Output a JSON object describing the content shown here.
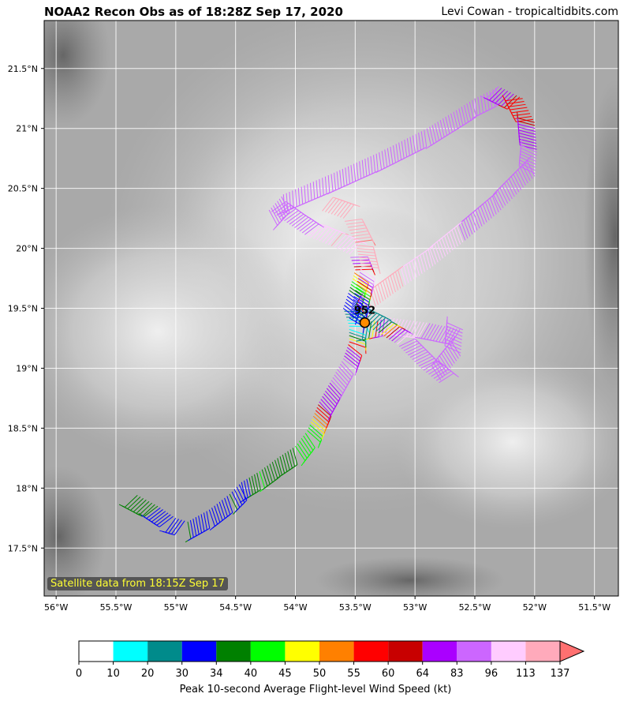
{
  "header": {
    "title": "NOAA2 Recon Obs as of 18:28Z Sep 17, 2020",
    "credit": "Levi Cowan - tropicaltidbits.com"
  },
  "map": {
    "lon_ticks": [
      "56°W",
      "55.5°W",
      "55°W",
      "54.5°W",
      "54°W",
      "53.5°W",
      "53°W",
      "52.5°W",
      "52°W",
      "51.5°W"
    ],
    "lat_ticks": [
      "21.5°N",
      "21°N",
      "20.5°N",
      "20°N",
      "19.5°N",
      "19°N",
      "18.5°N",
      "18°N",
      "17.5°N"
    ],
    "lon_range": [
      -56.1,
      -51.3
    ],
    "lat_range": [
      17.1,
      21.9
    ],
    "pressure_label": "952",
    "center": {
      "lon": -53.42,
      "lat": 19.38
    },
    "satellite_note": "Satellite data from 18:15Z Sep 17",
    "flight_track": [
      {
        "lon": -55.32,
        "lat": 17.94,
        "kt": 34
      },
      {
        "lon": -55.15,
        "lat": 17.85,
        "kt": 34
      },
      {
        "lon": -55.0,
        "lat": 17.75,
        "kt": 30
      },
      {
        "lon": -54.9,
        "lat": 17.72,
        "kt": 34
      },
      {
        "lon": -54.72,
        "lat": 17.82,
        "kt": 30
      },
      {
        "lon": -54.55,
        "lat": 17.95,
        "kt": 34
      },
      {
        "lon": -54.45,
        "lat": 18.05,
        "kt": 30
      },
      {
        "lon": -54.3,
        "lat": 18.14,
        "kt": 40
      },
      {
        "lon": -54.15,
        "lat": 18.25,
        "kt": 34
      },
      {
        "lon": -54.0,
        "lat": 18.35,
        "kt": 40
      },
      {
        "lon": -53.9,
        "lat": 18.48,
        "kt": 40
      },
      {
        "lon": -53.85,
        "lat": 18.6,
        "kt": 50
      },
      {
        "lon": -53.8,
        "lat": 18.72,
        "kt": 64
      },
      {
        "lon": -53.7,
        "lat": 18.9,
        "kt": 83
      },
      {
        "lon": -53.6,
        "lat": 19.08,
        "kt": 83
      },
      {
        "lon": -53.55,
        "lat": 19.22,
        "kt": 55
      },
      {
        "lon": -53.55,
        "lat": 19.35,
        "kt": 10
      },
      {
        "lon": -53.6,
        "lat": 19.5,
        "kt": 30
      },
      {
        "lon": -53.55,
        "lat": 19.65,
        "kt": 34
      },
      {
        "lon": -53.5,
        "lat": 19.82,
        "kt": 55
      },
      {
        "lon": -53.55,
        "lat": 19.95,
        "kt": 96
      },
      {
        "lon": -53.7,
        "lat": 20.02,
        "kt": 113
      },
      {
        "lon": -53.9,
        "lat": 20.1,
        "kt": 96
      },
      {
        "lon": -54.05,
        "lat": 20.2,
        "kt": 83
      },
      {
        "lon": -54.22,
        "lat": 20.32,
        "kt": 83
      },
      {
        "lon": -54.1,
        "lat": 20.45,
        "kt": 83
      },
      {
        "lon": -53.7,
        "lat": 20.62,
        "kt": 83
      },
      {
        "lon": -53.3,
        "lat": 20.8,
        "kt": 83
      },
      {
        "lon": -52.9,
        "lat": 21.0,
        "kt": 83
      },
      {
        "lon": -52.5,
        "lat": 21.25,
        "kt": 83
      },
      {
        "lon": -52.3,
        "lat": 21.35,
        "kt": 83
      },
      {
        "lon": -52.1,
        "lat": 21.25,
        "kt": 55
      },
      {
        "lon": -52.0,
        "lat": 21.05,
        "kt": 60
      },
      {
        "lon": -51.98,
        "lat": 20.8,
        "kt": 83
      },
      {
        "lon": -52.0,
        "lat": 20.6,
        "kt": 83
      },
      {
        "lon": -52.3,
        "lat": 20.3,
        "kt": 83
      },
      {
        "lon": -52.6,
        "lat": 20.05,
        "kt": 96
      },
      {
        "lon": -52.85,
        "lat": 19.85,
        "kt": 96
      },
      {
        "lon": -53.1,
        "lat": 19.68,
        "kt": 113
      },
      {
        "lon": -53.35,
        "lat": 19.5,
        "kt": 113
      },
      {
        "lon": -53.42,
        "lat": 19.38,
        "kt": 20
      },
      {
        "lon": -53.2,
        "lat": 19.42,
        "kt": 96
      },
      {
        "lon": -52.9,
        "lat": 19.38,
        "kt": 96
      },
      {
        "lon": -52.6,
        "lat": 19.32,
        "kt": 83
      },
      {
        "lon": -52.62,
        "lat": 19.1,
        "kt": 83
      },
      {
        "lon": -52.8,
        "lat": 18.88,
        "kt": 83
      },
      {
        "lon": -52.95,
        "lat": 19.0,
        "kt": 83
      },
      {
        "lon": -53.15,
        "lat": 19.2,
        "kt": 96
      },
      {
        "lon": -53.35,
        "lat": 19.32,
        "kt": 20
      },
      {
        "lon": -53.55,
        "lat": 19.42,
        "kt": 30
      },
      {
        "lon": -53.5,
        "lat": 19.65,
        "kt": 34
      },
      {
        "lon": -53.45,
        "lat": 19.85,
        "kt": 113
      },
      {
        "lon": -53.5,
        "lat": 20.05,
        "kt": 137
      },
      {
        "lon": -53.6,
        "lat": 20.25,
        "kt": 113
      },
      {
        "lon": -53.8,
        "lat": 20.32,
        "kt": 113
      }
    ]
  },
  "colorbar": {
    "label": "Peak 10-second Average Flight-level Wind Speed (kt)",
    "bins": [
      {
        "tick": "0",
        "color": "#ffffff"
      },
      {
        "tick": "10",
        "color": "#00ffff"
      },
      {
        "tick": "20",
        "color": "#008b8b"
      },
      {
        "tick": "30",
        "color": "#0000ff"
      },
      {
        "tick": "34",
        "color": "#008000"
      },
      {
        "tick": "40",
        "color": "#00ff00"
      },
      {
        "tick": "45",
        "color": "#ffff00"
      },
      {
        "tick": "50",
        "color": "#ff8000"
      },
      {
        "tick": "55",
        "color": "#ff0000"
      },
      {
        "tick": "60",
        "color": "#c80000"
      },
      {
        "tick": "64",
        "color": "#aa00ff"
      },
      {
        "tick": "83",
        "color": "#cc66ff"
      },
      {
        "tick": "96",
        "color": "#ffccff"
      },
      {
        "tick": "113",
        "color": "#ffaabb"
      }
    ],
    "last_tick": "137",
    "extend_color": "#ff7070"
  }
}
